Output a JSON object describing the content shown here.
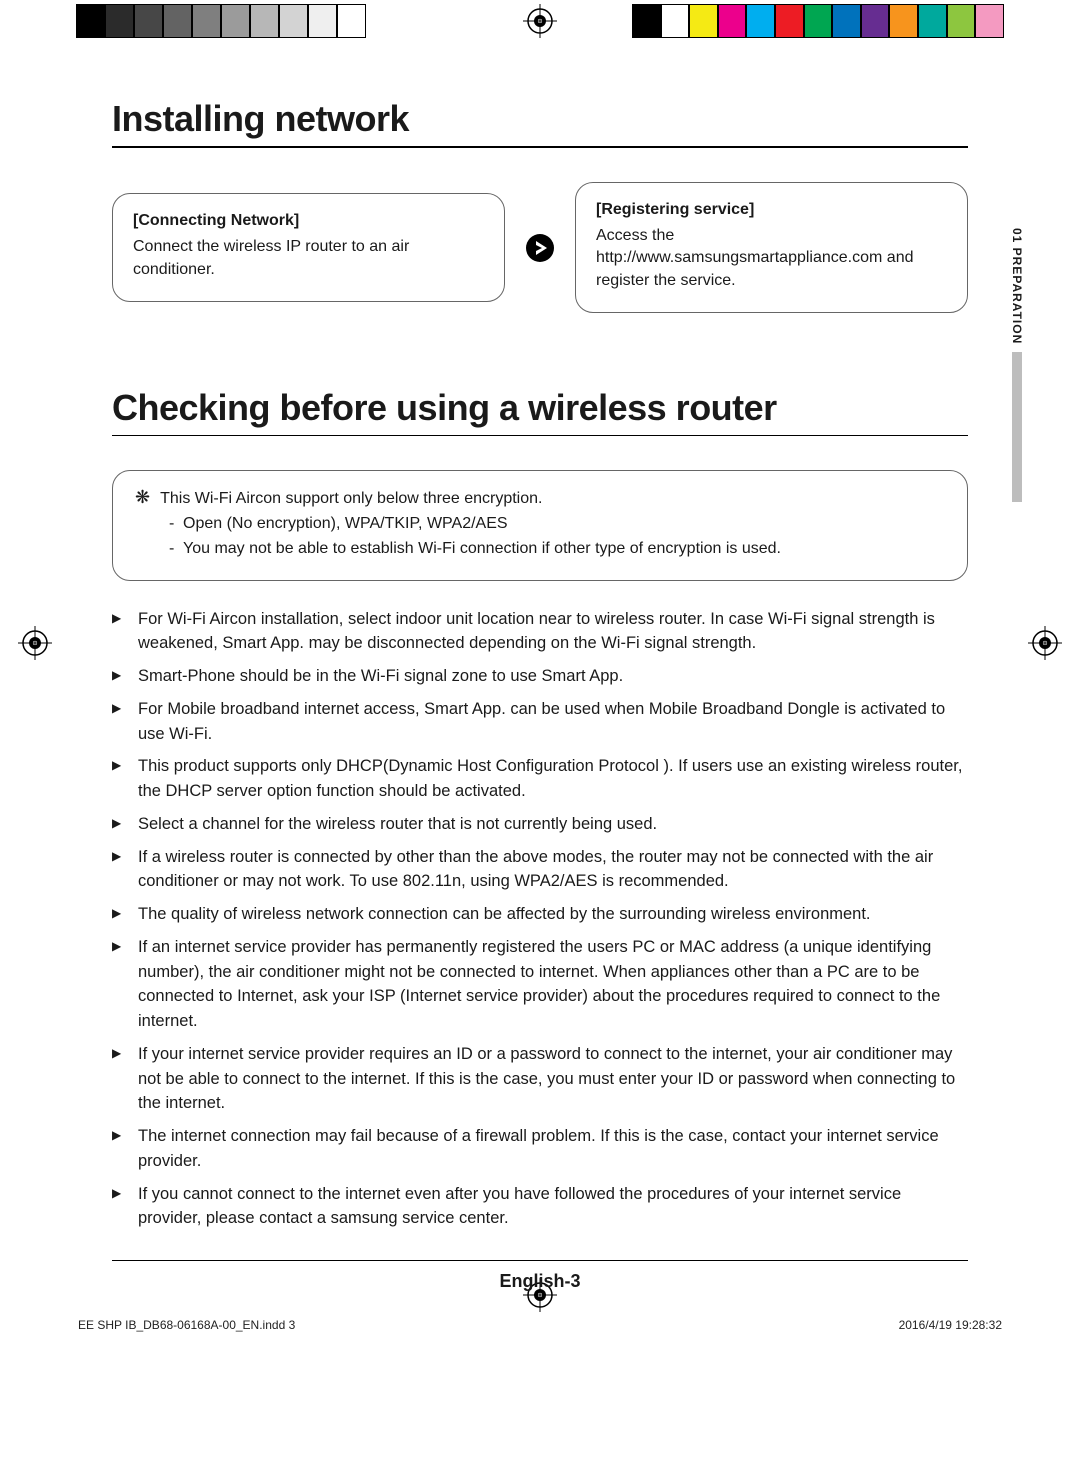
{
  "swatches_left_colors": [
    "#000000",
    "#2b2b2b",
    "#474747",
    "#636363",
    "#7f7f7f",
    "#9b9b9b",
    "#b7b7b7",
    "#d3d3d3",
    "#efefef",
    "#ffffff"
  ],
  "swatches_right_colors": [
    "#000000",
    "#ffffff",
    "#f5ea14",
    "#ec008c",
    "#00aeef",
    "#ed1c24",
    "#00a651",
    "#0072bc",
    "#662d91",
    "#f7941d",
    "#00a99d",
    "#8dc63f",
    "#f49ac1"
  ],
  "h1": "Installing network",
  "steps": {
    "left": {
      "title": "[Connecting Network]",
      "body": "Connect the wireless IP router to an air conditioner."
    },
    "right": {
      "title": "[Registering service]",
      "body": "Access the  http://www.samsungsmartappliance.com and register the service."
    }
  },
  "h2": "Checking before using a wireless router",
  "note": {
    "lead": "This Wi-Fi Aircon support only below three encryption.",
    "sub": [
      "Open (No encryption), WPA/TKIP, WPA2/AES",
      "You may not be able to establish Wi-Fi connection if other type of encryption is used."
    ]
  },
  "bullets": [
    "For Wi-Fi Aircon installation, select indoor unit location near to wireless router. In case Wi-Fi signal strength is weakened, Smart App. may be disconnected depending on the Wi-Fi signal strength.",
    "Smart-Phone should be in the Wi-Fi signal zone to use Smart App.",
    "For Mobile broadband internet access, Smart App. can be used when Mobile Broadband Dongle is activated to use Wi-Fi.",
    "This product supports only DHCP(Dynamic Host Configuration Protocol ). If users use an existing wireless router, the DHCP server option function should be activated.",
    "Select a channel for the wireless router that is not currently being used.",
    "If a wireless router is connected by other than the above modes, the router may not be connected with the air conditioner or may not work. To use 802.11n, using WPA2/AES is recommended.",
    "The quality of wireless network connection can be affected by the surrounding wireless environment.",
    "If an internet service provider has permanently registered the users PC or MAC address (a unique identifying number), the air conditioner might not be connected to internet. When appliances other than a PC are to be connected to Internet, ask your ISP (Internet service provider) about the procedures required to connect to the internet.",
    "If your internet service provider requires an ID or a password to connect to the internet, your air conditioner may not be able to connect to the internet. If this is the case, you must enter your ID or password when connecting to the internet.",
    "The internet connection may fail because of a firewall problem. If this is the case, contact your internet service provider.",
    "If you cannot connect to the internet even after you have followed the procedures of your internet service provider, please contact a samsung service center."
  ],
  "side_tab": "01  PREPARATION",
  "page_label": "English-3",
  "imposition": {
    "file": "EE SHP IB_DB68-06168A-00_EN.indd   3",
    "timestamp": "2016/4/19   19:28:32"
  }
}
